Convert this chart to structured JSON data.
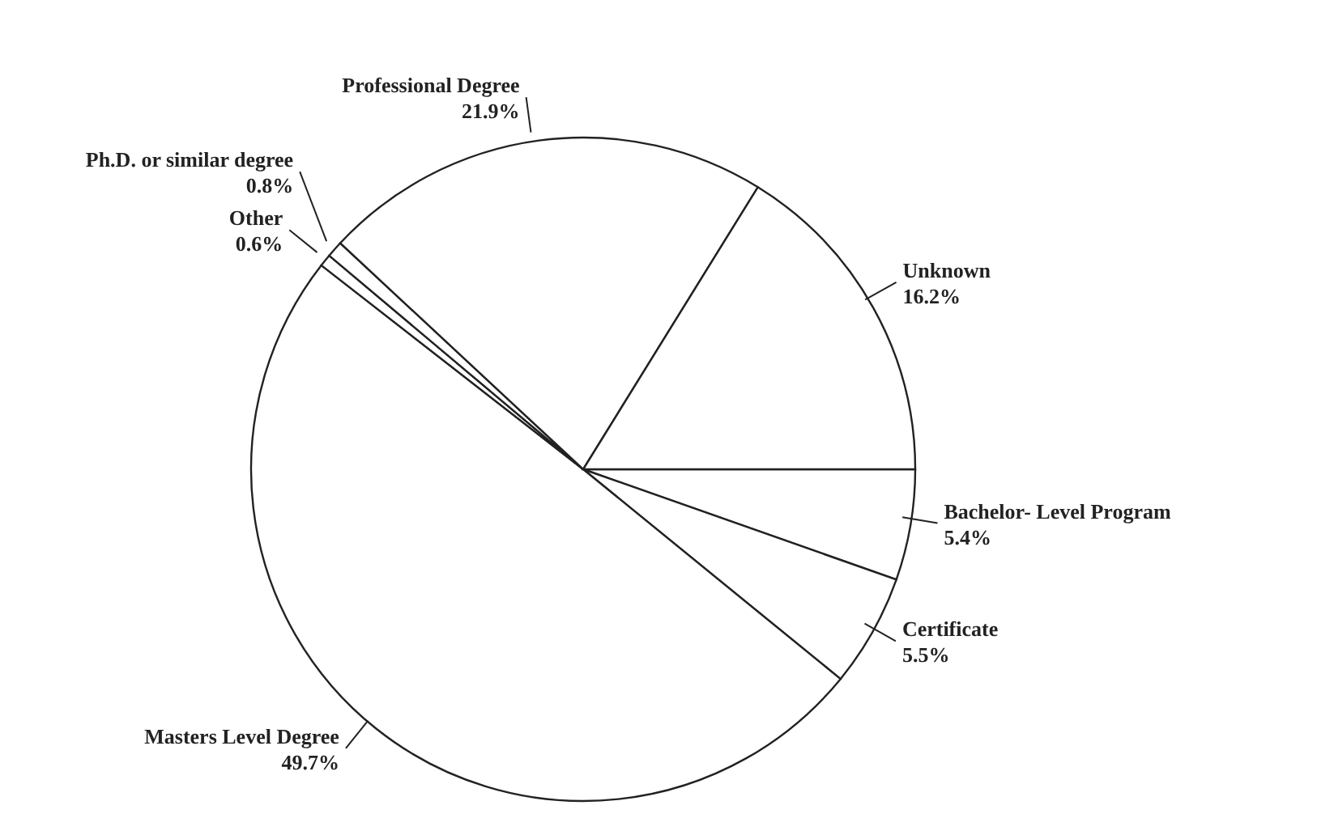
{
  "chart_data": {
    "type": "pie",
    "categories": [
      "Bachelor- Level Program",
      "Certificate",
      "Masters Level Degree",
      "Other",
      "Ph.D. or similar degree",
      "Professional Degree",
      "Unknown"
    ],
    "values": [
      5.4,
      5.5,
      49.7,
      0.6,
      0.8,
      21.9,
      16.2
    ],
    "colors": [
      "#ffffff",
      "#ffffff",
      "#ffffff",
      "#ffffff",
      "#ffffff",
      "#ffffff",
      "#ffffff"
    ],
    "value_labels": [
      "5.4%",
      "5.5%",
      "49.7%",
      "0.6%",
      "0.8%",
      "21.9%",
      "16.2%"
    ]
  }
}
